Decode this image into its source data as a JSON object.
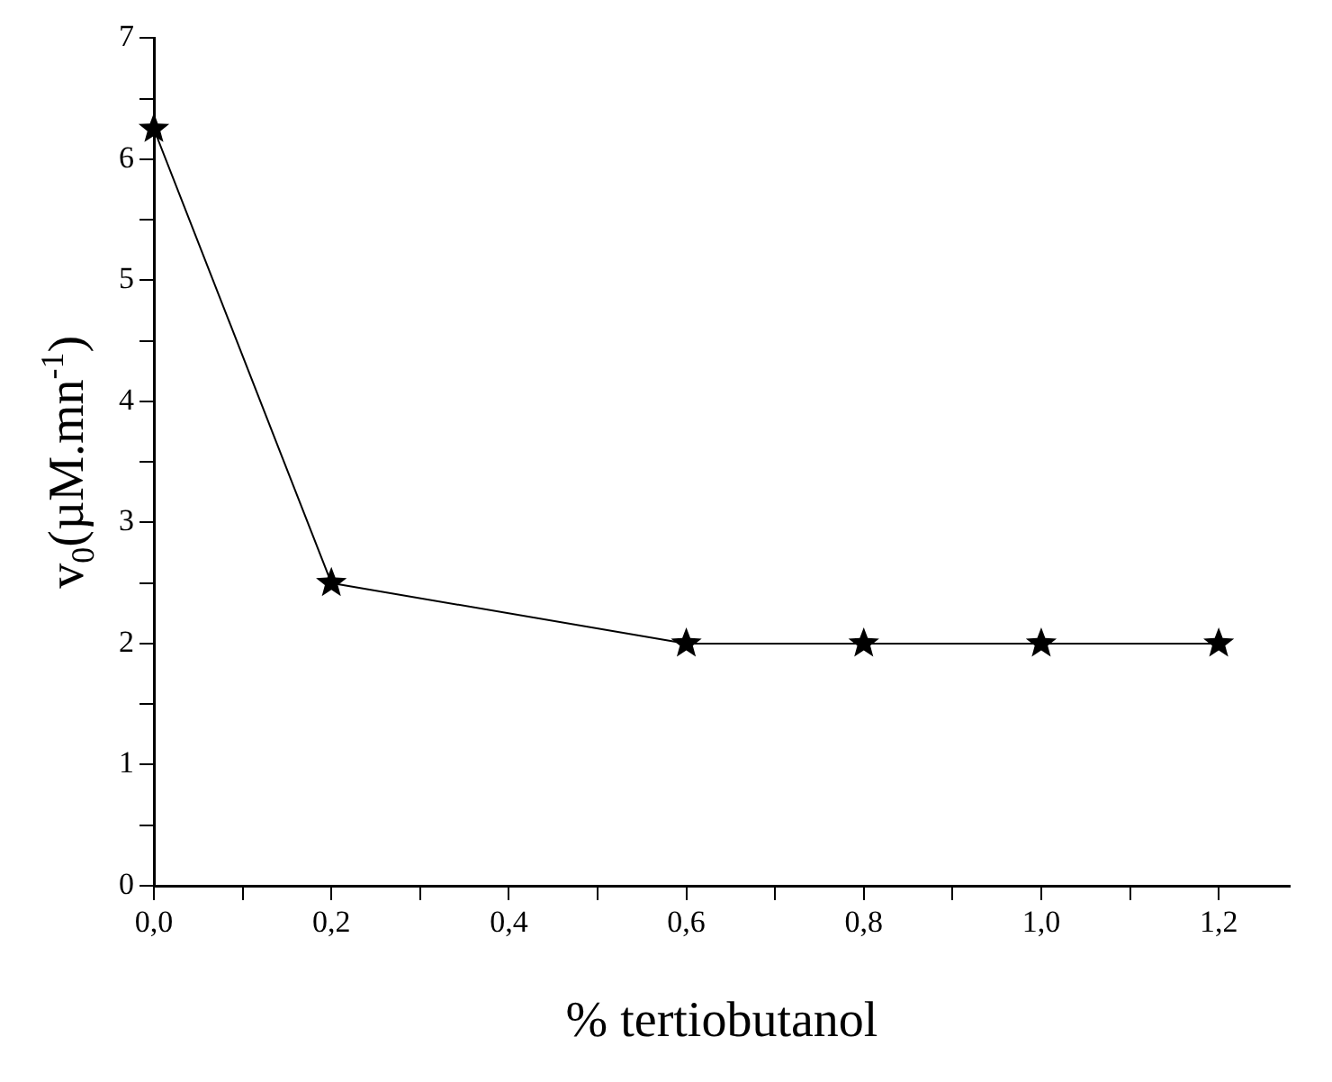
{
  "chart_data": {
    "type": "line",
    "xlabel": "% tertiobutanol",
    "ylabel": "v$_{0}$(µM.mn$^{-1}$)",
    "x": [
      0,
      0.2,
      0.6,
      0.8,
      1.0,
      1.2
    ],
    "series": [
      {
        "color": "#000000",
        "values": [
          6.25,
          2.5,
          2,
          2,
          2,
          2
        ]
      }
    ],
    "xlim": [
      0,
      1.28
    ],
    "xticks": [
      {
        "value": 0,
        "label": "0,0"
      },
      {
        "value": 0.1,
        "label": null
      },
      {
        "value": 0.2,
        "label": "0,2"
      },
      {
        "value": 0.3,
        "label": null
      },
      {
        "value": 0.4,
        "label": "0,4"
      },
      {
        "value": 0.5,
        "label": null
      },
      {
        "value": 0.6,
        "label": "0,6"
      },
      {
        "value": 0.7,
        "label": null
      },
      {
        "value": 0.8,
        "label": "0,8"
      },
      {
        "value": 0.9,
        "label": null
      },
      {
        "value": 1.0,
        "label": "1,0"
      },
      {
        "value": 1.1,
        "label": null
      },
      {
        "value": 1.2,
        "label": "1,2"
      }
    ],
    "ylim": [
      0,
      7
    ],
    "yticks": [
      0,
      {
        "value": 0.5,
        "label": null
      },
      1,
      {
        "value": 1.5,
        "label": null
      },
      2,
      {
        "value": 2.5,
        "label": null
      },
      3,
      {
        "value": 3.5,
        "label": null
      },
      4,
      {
        "value": 4.5,
        "label": null
      },
      5,
      {
        "value": 5.5,
        "label": null
      },
      6,
      {
        "value": 6.5,
        "label": null
      },
      7
    ],
    "marker": "star",
    "line_style": "solid",
    "grid": false,
    "legend": false
  }
}
